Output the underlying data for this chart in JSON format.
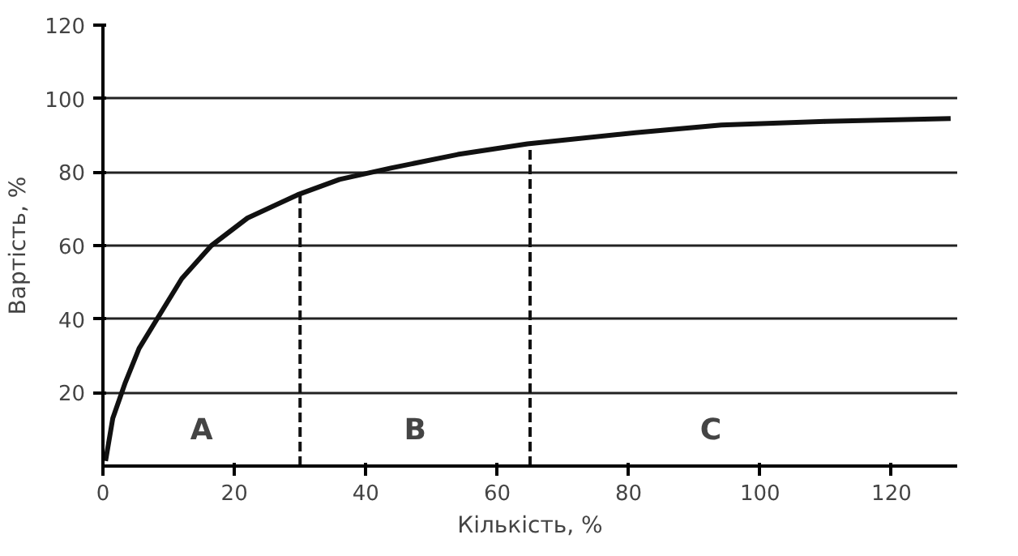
{
  "chart_data": {
    "type": "line",
    "xlabel": "Кількість, %",
    "ylabel": "Вартість, %",
    "x": [
      0.4,
      1.5,
      3.4,
      5.5,
      8.3,
      12,
      16.5,
      22,
      29.6,
      36,
      43.8,
      54,
      64.6,
      81,
      94.1,
      110,
      129
    ],
    "series": [
      {
        "color": "#111111",
        "values": [
          1.4,
          13,
          22.7,
          32,
          40.2,
          51,
          60,
          67.5,
          73.8,
          78,
          81.1,
          84.8,
          87.7,
          90.7,
          92.8,
          93.8,
          94.6
        ]
      }
    ],
    "xlim": [
      0,
      130
    ],
    "ylim": [
      0,
      120
    ],
    "xticks": [
      0,
      20,
      40,
      60,
      80,
      100,
      120
    ],
    "yticks": [
      20,
      40,
      60,
      80,
      100,
      120
    ],
    "grid": "y",
    "marker": "none",
    "line_style": "solid",
    "ref_lines": [
      {
        "axis": "x",
        "value": 30,
        "label": null,
        "line_style": "dashed"
      },
      {
        "axis": "x",
        "value": 65,
        "label": null,
        "line_style": "dashed"
      }
    ],
    "annotations": [
      "A",
      "B",
      "C"
    ]
  }
}
